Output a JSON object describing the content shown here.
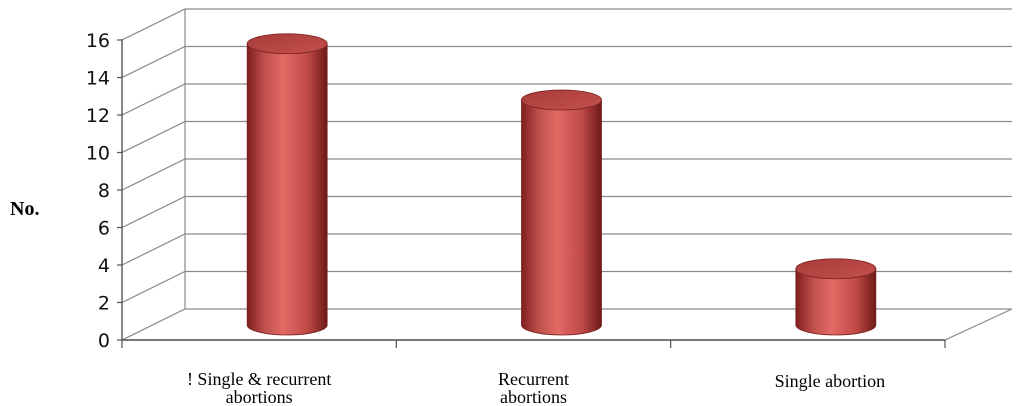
{
  "chart_data": {
    "type": "bar",
    "style": "3d-cylinder",
    "title": "",
    "xlabel": "",
    "ylabel": "No.",
    "ylim": [
      0,
      16
    ],
    "yticks": [
      0,
      2,
      4,
      6,
      8,
      10,
      12,
      14,
      16
    ],
    "grid": true,
    "legend": "none",
    "categories": [
      [
        "! Single & recurrent",
        "abortions"
      ],
      [
        "Recurrent",
        "abortions"
      ],
      [
        "Single abortion"
      ]
    ],
    "series": [
      {
        "values": [
          15,
          12,
          3
        ],
        "color": "#c0504d"
      }
    ]
  }
}
